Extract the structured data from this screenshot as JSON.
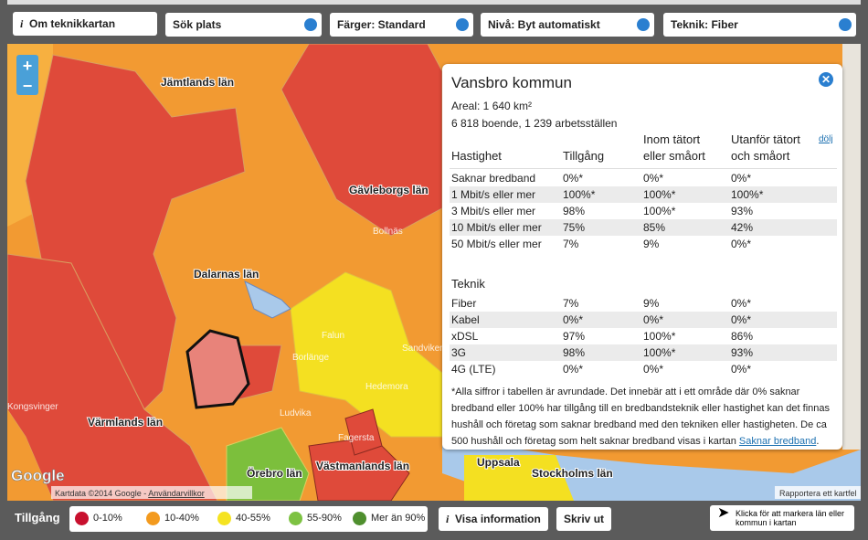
{
  "toolbar": {
    "about": "Om teknikkartan",
    "search": "Sök plats",
    "colors": "Färger: Standard",
    "level": "Nivå: Byt automatiskt",
    "technology": "Teknik: Fiber"
  },
  "map": {
    "labels": [
      "Jämtlands län",
      "Gävleborgs län",
      "Dalarnas län",
      "Värmlands län",
      "Örebro län",
      "Västmanlands län",
      "Uppsala",
      "Stockholms län",
      "Falun",
      "Borlänge",
      "Ludvika",
      "Hedemora",
      "Sandviken",
      "Kongsvinger",
      "Fagersta",
      "Bollnäs"
    ],
    "attribution": "Kartdata ©2014 Google - ",
    "terms": "Användarvillkor",
    "report": "Rapportera ett kartfel",
    "logo": "Google"
  },
  "popup": {
    "title": "Vansbro kommun",
    "area": "Areal: 1 640 km²",
    "population": "6 818 boende, 1 239 arbetsställen",
    "hide": "dölj",
    "speed_header": [
      "Hastighet",
      "Tillgång",
      "Inom tätort eller småort",
      "Utanför tätort och småort"
    ],
    "speed_rows": [
      [
        "Saknar bredband",
        "0%*",
        "0%*",
        "0%*"
      ],
      [
        "1 Mbit/s eller mer",
        "100%*",
        "100%*",
        "100%*"
      ],
      [
        "3 Mbit/s eller mer",
        "98%",
        "100%*",
        "93%"
      ],
      [
        "10 Mbit/s eller mer",
        "75%",
        "85%",
        "42%"
      ],
      [
        "50 Mbit/s eller mer",
        "7%",
        "9%",
        "0%*"
      ]
    ],
    "tech_header": "Teknik",
    "tech_rows": [
      [
        "Fiber",
        "7%",
        "9%",
        "0%*"
      ],
      [
        "Kabel",
        "0%*",
        "0%*",
        "0%*"
      ],
      [
        "xDSL",
        "97%",
        "100%*",
        "86%"
      ],
      [
        "3G",
        "98%",
        "100%*",
        "93%"
      ],
      [
        "4G (LTE)",
        "0%*",
        "0%*",
        "0%*"
      ]
    ],
    "note": "*Alla siffror i tabellen är avrundade. Det innebär att i ett område där 0% saknar bredband eller 100% har tillgång till en bredbandsteknik eller hastighet kan det finnas hushåll och företag som saknar bredband med den tekniken eller hastigheten. De ca 500 hushåll och företag som helt saknar bredband visas i kartan ",
    "note_link": "Saknar bredband",
    "note_end": "."
  },
  "footer": {
    "title": "Tillgång",
    "legend": [
      "0-10%",
      "10-40%",
      "40-55%",
      "55-90%",
      "Mer än 90%"
    ],
    "info": "Visa information",
    "print": "Skriv ut",
    "hint": "Klicka för att markera län eller kommun i kartan"
  }
}
